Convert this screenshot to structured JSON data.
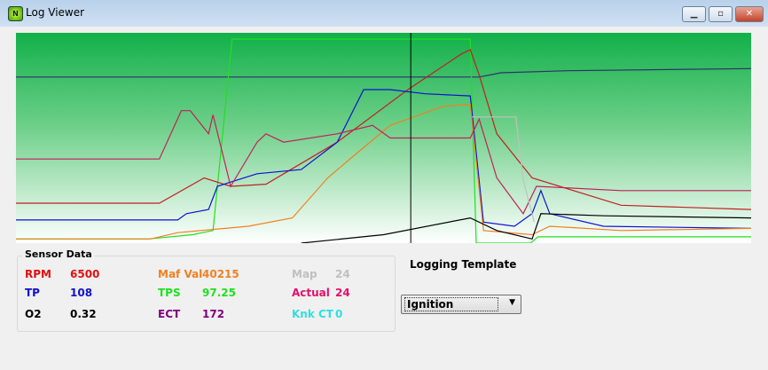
{
  "window": {
    "title": "Log Viewer",
    "icon": "app-logo-icon",
    "controls": [
      "minimize",
      "restore",
      "close"
    ]
  },
  "sensor_data": {
    "title": "Sensor Data",
    "items": [
      {
        "label": "RPM",
        "value": "6500",
        "color": "#e01010"
      },
      {
        "label": "TP",
        "value": "108",
        "color": "#1010d0"
      },
      {
        "label": "O2",
        "value": "0.32",
        "color": "#000000"
      },
      {
        "label": "Maf Val",
        "value": "40215",
        "color": "#f08020"
      },
      {
        "label": "TPS",
        "value": "97.25",
        "color": "#20e020"
      },
      {
        "label": "ECT",
        "value": "172",
        "color": "#800080"
      },
      {
        "label": "Map",
        "value": "24",
        "color": "#c0c0c0"
      },
      {
        "label": "Actual",
        "value": "24",
        "color": "#e0106a"
      },
      {
        "label": "Knk CT",
        "value": "0",
        "color": "#30e0e0"
      }
    ]
  },
  "logging_template": {
    "label": "Logging Template",
    "selected": "Ignition"
  },
  "chart_data": {
    "type": "line",
    "grid": false,
    "background": {
      "top": "#12b04a",
      "bottom": "#ffffff"
    },
    "cursor_x": 53.7,
    "series": [
      {
        "color": "#303070",
        "points": [
          [
            0,
            79
          ],
          [
            63,
            79
          ],
          [
            66,
            81
          ],
          [
            75,
            82
          ],
          [
            100,
            83
          ]
        ]
      },
      {
        "color": "#20e020",
        "points": [
          [
            0,
            2
          ],
          [
            18,
            2
          ],
          [
            24,
            4
          ],
          [
            26.8,
            6
          ],
          [
            29.4,
            97
          ],
          [
            61.8,
            97
          ],
          [
            62.6,
            0
          ],
          [
            70,
            0
          ],
          [
            71,
            3
          ],
          [
            100,
            3
          ]
        ]
      },
      {
        "color": "#c02020",
        "points": [
          [
            0,
            19
          ],
          [
            19.5,
            19
          ],
          [
            25.6,
            31
          ],
          [
            29.2,
            27
          ],
          [
            34,
            28
          ],
          [
            43.7,
            48
          ],
          [
            53.3,
            73
          ],
          [
            60.6,
            90
          ],
          [
            61.8,
            92
          ],
          [
            63,
            80
          ],
          [
            65.4,
            52
          ],
          [
            70.2,
            31
          ],
          [
            82.3,
            18
          ],
          [
            100,
            16
          ]
        ]
      },
      {
        "color": "#1010d0",
        "points": [
          [
            0,
            11
          ],
          [
            22,
            11
          ],
          [
            23.2,
            14
          ],
          [
            26.2,
            16
          ],
          [
            27.4,
            27
          ],
          [
            32.8,
            33
          ],
          [
            38.8,
            35
          ],
          [
            43.7,
            48
          ],
          [
            47.3,
            73
          ],
          [
            50.9,
            73
          ],
          [
            55.7,
            71
          ],
          [
            61.8,
            70
          ],
          [
            63.6,
            10
          ],
          [
            67.8,
            8
          ],
          [
            70.2,
            14
          ],
          [
            71.4,
            25
          ],
          [
            72.6,
            14
          ],
          [
            79.9,
            8
          ],
          [
            100,
            7
          ]
        ]
      },
      {
        "color": "#f08020",
        "points": [
          [
            0,
            2
          ],
          [
            18.3,
            2
          ],
          [
            22,
            5
          ],
          [
            31.6,
            8
          ],
          [
            37.6,
            12
          ],
          [
            42.4,
            31
          ],
          [
            46.1,
            42
          ],
          [
            50.9,
            56
          ],
          [
            58.1,
            65
          ],
          [
            61.8,
            66
          ],
          [
            63.6,
            6
          ],
          [
            70.2,
            4
          ],
          [
            72.6,
            8
          ],
          [
            82.3,
            6
          ],
          [
            100,
            7
          ]
        ]
      },
      {
        "color": "#c0205a",
        "points": [
          [
            0,
            40
          ],
          [
            19.5,
            40
          ],
          [
            22.5,
            63
          ],
          [
            23.7,
            63
          ],
          [
            26.2,
            52
          ],
          [
            26.8,
            61
          ],
          [
            29.2,
            27
          ],
          [
            32.8,
            48
          ],
          [
            34,
            52
          ],
          [
            36.4,
            48
          ],
          [
            43.7,
            52
          ],
          [
            48.5,
            56
          ],
          [
            50.9,
            50
          ],
          [
            61.8,
            50
          ],
          [
            63,
            59
          ],
          [
            65.4,
            31
          ],
          [
            69,
            14
          ],
          [
            70.8,
            27
          ],
          [
            82.3,
            25
          ],
          [
            100,
            25
          ]
        ]
      },
      {
        "color": "#c0c0c0",
        "points": [
          [
            62,
            60
          ],
          [
            68,
            60
          ],
          [
            69,
            30
          ],
          [
            70.5,
            10
          ]
        ]
      },
      {
        "color": "#000000",
        "points": [
          [
            38.8,
            0
          ],
          [
            50,
            4
          ],
          [
            61.8,
            12
          ],
          [
            65.4,
            6
          ],
          [
            70.2,
            2
          ],
          [
            71.4,
            14
          ],
          [
            80,
            13
          ],
          [
            100,
            12
          ]
        ]
      }
    ]
  }
}
